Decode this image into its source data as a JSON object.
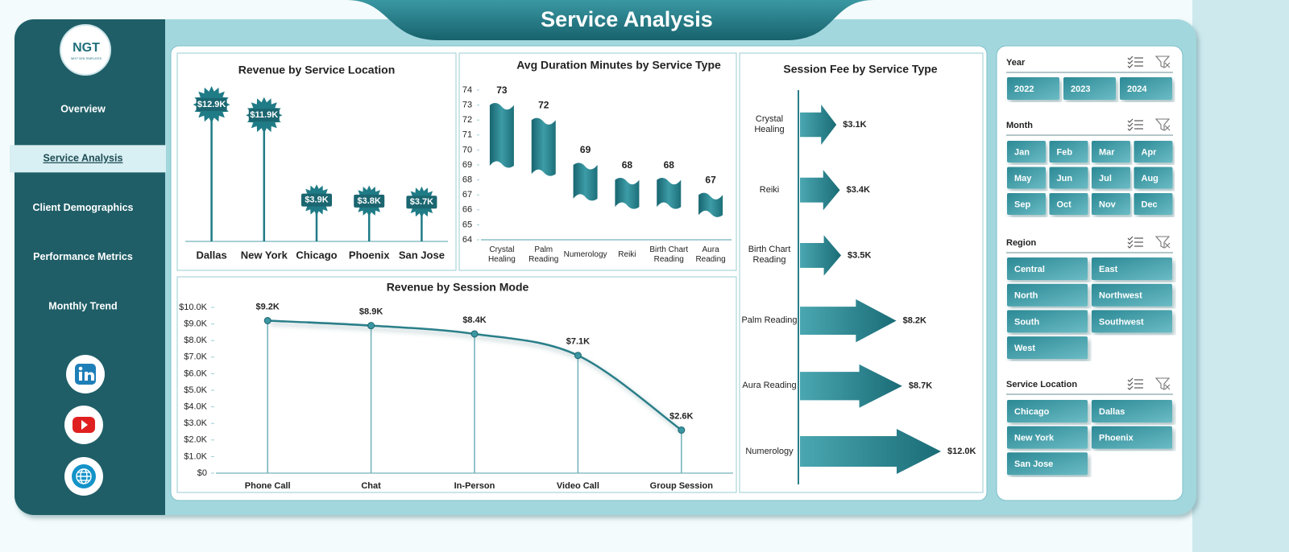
{
  "header": {
    "title": "Service Analysis"
  },
  "sidebar": {
    "logo": "NGT",
    "logo_subtitle": "NEXT GEN TEMPLATES",
    "nav": [
      "Overview",
      "Service Analysis",
      "Client Demographics",
      "Performance Metrics",
      "Monthly Trend"
    ]
  },
  "chart_data": [
    {
      "type": "lollipop",
      "title": "Revenue by Service Location",
      "categories": [
        "Dallas",
        "New York",
        "Chicago",
        "Phoenix",
        "San Jose"
      ],
      "values": [
        12.9,
        11.9,
        3.9,
        3.8,
        3.7
      ],
      "value_labels": [
        "$12.9K",
        "$11.9K",
        "$3.9K",
        "$3.8K",
        "$3.7K"
      ],
      "color": "#1f7b86"
    },
    {
      "type": "bar",
      "title": "Avg Duration Minutes by Service Type",
      "categories": [
        "Crystal Healing",
        "Palm Reading",
        "Numerology",
        "Reiki",
        "Birth Chart Reading",
        "Aura Reading"
      ],
      "values": [
        73,
        72,
        69,
        68,
        68,
        67
      ],
      "ylim": [
        64,
        74
      ],
      "yticks": [
        64,
        65,
        66,
        67,
        68,
        69,
        70,
        71,
        72,
        73,
        74
      ],
      "color": "#227f8a"
    },
    {
      "type": "arrow",
      "title": "Session Fee by Service Type",
      "categories": [
        "Crystal Healing",
        "Reiki",
        "Birth Chart Reading",
        "Palm Reading",
        "Aura Reading",
        "Numerology"
      ],
      "values": [
        3.1,
        3.4,
        3.5,
        8.2,
        8.7,
        12.0
      ],
      "value_labels": [
        "$3.1K",
        "$3.4K",
        "$3.5K",
        "$8.2K",
        "$8.7K",
        "$12.0K"
      ],
      "color": "#227f8a"
    },
    {
      "type": "line",
      "title": "Revenue by Session Mode",
      "categories": [
        "Phone Call",
        "Chat",
        "In-Person",
        "Video Call",
        "Group Session"
      ],
      "values": [
        9200,
        8900,
        8400,
        7100,
        2600
      ],
      "value_labels": [
        "$9.2K",
        "$8.9K",
        "$8.4K",
        "$7.1K",
        "$2.6K"
      ],
      "ylim": [
        0,
        10000
      ],
      "yticks": [
        {
          "value": 0,
          "label": "$0"
        },
        {
          "value": 1000,
          "label": "$1.0K"
        },
        {
          "value": 2000,
          "label": "$2.0K"
        },
        {
          "value": 3000,
          "label": "$3.0K"
        },
        {
          "value": 4000,
          "label": "$4.0K"
        },
        {
          "value": 5000,
          "label": "$5.0K"
        },
        {
          "value": 6000,
          "label": "$6.0K"
        },
        {
          "value": 7000,
          "label": "$7.0K"
        },
        {
          "value": 8000,
          "label": "$8.0K"
        },
        {
          "value": 9000,
          "label": "$9.0K"
        },
        {
          "value": 10000,
          "label": "$10.0K"
        }
      ],
      "color": "#2a7f89"
    }
  ],
  "slicers": [
    {
      "title": "Year",
      "items": [
        "2022",
        "2023",
        "2024"
      ]
    },
    {
      "title": "Month",
      "items": [
        "Jan",
        "Feb",
        "Mar",
        "Apr",
        "May",
        "Jun",
        "Jul",
        "Aug",
        "Sep",
        "Oct",
        "Nov",
        "Dec"
      ]
    },
    {
      "title": "Region",
      "items": [
        "Central",
        "East",
        "North",
        "Northwest",
        "South",
        "Southwest",
        "West"
      ]
    },
    {
      "title": "Service Location",
      "items": [
        "Chicago",
        "Dallas",
        "New York",
        "Phoenix",
        "San Jose"
      ]
    }
  ]
}
